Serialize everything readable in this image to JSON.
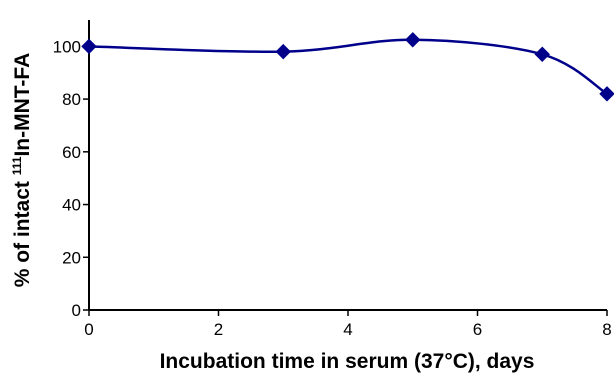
{
  "chart_data": {
    "type": "line",
    "title": "",
    "xlabel": "Incubation time in serum (37°C), days",
    "ylabel": {
      "prefix": "% of intact ",
      "superscript": "111",
      "suffix": "In-MNT-FA"
    },
    "x": [
      0,
      3,
      5,
      7,
      8
    ],
    "series": [
      {
        "values": [
          100,
          98,
          102.5,
          97,
          82
        ]
      }
    ],
    "xlim": [
      0,
      8
    ],
    "ylim": [
      0,
      110
    ],
    "xticks": [
      "0",
      "2",
      "4",
      "6",
      "8"
    ],
    "yticks": [
      "0",
      "20",
      "40",
      "60",
      "80",
      "100"
    ],
    "grid": false,
    "legend": "none",
    "line_color": "#00008B",
    "marker": "diamond"
  }
}
